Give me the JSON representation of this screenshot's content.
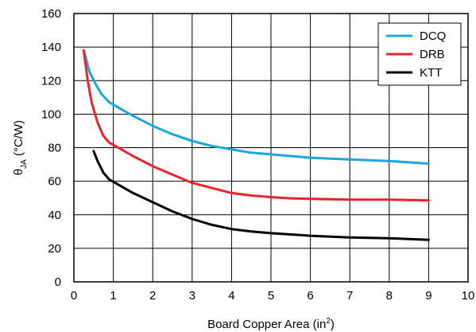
{
  "chart_data": {
    "type": "line",
    "title": "",
    "xlabel": "Board Copper Area (in",
    "xlabel_sup": "2",
    "xlabel_close": ")",
    "ylabel_theta": "θ",
    "ylabel_sub": "JA",
    "ylabel_unit": " (°C/W)",
    "xlim": [
      0,
      10
    ],
    "ylim": [
      0,
      160
    ],
    "xticks": [
      0,
      1,
      2,
      3,
      4,
      5,
      6,
      7,
      8,
      9,
      10
    ],
    "yticks": [
      0,
      20,
      40,
      60,
      80,
      100,
      120,
      140,
      160
    ],
    "grid": true,
    "legend_position": "top-right",
    "series": [
      {
        "name": "DCQ",
        "color": "#1aa7e0",
        "points": [
          [
            0.25,
            138
          ],
          [
            0.4,
            125
          ],
          [
            0.55,
            118
          ],
          [
            0.7,
            112
          ],
          [
            0.9,
            107
          ],
          [
            1.2,
            103
          ],
          [
            1.5,
            99
          ],
          [
            2.0,
            93
          ],
          [
            2.5,
            88
          ],
          [
            3.0,
            84
          ],
          [
            3.5,
            81
          ],
          [
            4.0,
            79
          ],
          [
            4.5,
            77
          ],
          [
            5.0,
            76
          ],
          [
            5.5,
            75
          ],
          [
            6.0,
            74
          ],
          [
            6.5,
            73.5
          ],
          [
            7.0,
            73
          ],
          [
            8.0,
            72
          ],
          [
            9.0,
            70.5
          ]
        ]
      },
      {
        "name": "DRB",
        "color": "#e8242c",
        "points": [
          [
            0.25,
            138
          ],
          [
            0.35,
            120
          ],
          [
            0.45,
            107
          ],
          [
            0.6,
            95
          ],
          [
            0.75,
            87
          ],
          [
            0.9,
            83
          ],
          [
            1.2,
            79
          ],
          [
            1.5,
            75
          ],
          [
            2.0,
            69
          ],
          [
            2.5,
            64
          ],
          [
            3.0,
            59
          ],
          [
            3.5,
            56
          ],
          [
            4.0,
            53
          ],
          [
            4.5,
            51.5
          ],
          [
            5.0,
            50.5
          ],
          [
            5.5,
            49.8
          ],
          [
            6.0,
            49.5
          ],
          [
            7.0,
            49
          ],
          [
            8.0,
            49
          ],
          [
            9.0,
            48.5
          ]
        ]
      },
      {
        "name": "KTT",
        "color": "#000000",
        "points": [
          [
            0.5,
            78
          ],
          [
            0.6,
            72
          ],
          [
            0.75,
            65
          ],
          [
            0.9,
            61
          ],
          [
            1.2,
            57
          ],
          [
            1.5,
            53
          ],
          [
            2.0,
            47.5
          ],
          [
            2.5,
            42
          ],
          [
            3.0,
            37.5
          ],
          [
            3.5,
            34
          ],
          [
            4.0,
            31.5
          ],
          [
            4.5,
            30
          ],
          [
            5.0,
            29
          ],
          [
            6.0,
            27.5
          ],
          [
            7.0,
            26.5
          ],
          [
            8.0,
            26
          ],
          [
            9.0,
            25
          ]
        ]
      }
    ]
  }
}
